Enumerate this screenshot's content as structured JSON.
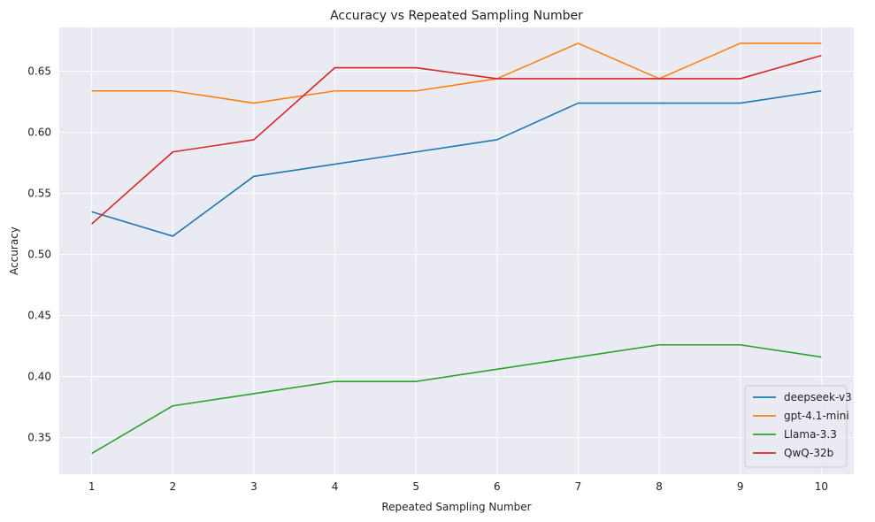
{
  "chart_data": {
    "type": "line",
    "title": "Accuracy vs Repeated Sampling Number",
    "xlabel": "Repeated Sampling Number",
    "ylabel": "Accuracy",
    "x": [
      1,
      2,
      3,
      4,
      5,
      6,
      7,
      8,
      9,
      10
    ],
    "xlim": [
      0.6,
      10.4
    ],
    "ylim": [
      0.32,
      0.686
    ],
    "xticks": [
      "1",
      "2",
      "3",
      "4",
      "5",
      "6",
      "7",
      "8",
      "9",
      "10"
    ],
    "yticks": [
      "0.35",
      "0.40",
      "0.45",
      "0.50",
      "0.55",
      "0.60",
      "0.65"
    ],
    "grid": true,
    "legend_position": "bottom-right",
    "series": [
      {
        "name": "deepseek-v3",
        "color": "#1f77b4",
        "values": [
          0.535,
          0.515,
          0.564,
          0.574,
          0.584,
          0.594,
          0.624,
          0.624,
          0.624,
          0.634
        ]
      },
      {
        "name": "gpt-4.1-mini",
        "color": "#ff7f0e",
        "values": [
          0.634,
          0.634,
          0.624,
          0.634,
          0.634,
          0.644,
          0.673,
          0.644,
          0.673,
          0.673
        ]
      },
      {
        "name": "Llama-3.3",
        "color": "#2ca02c",
        "values": [
          0.337,
          0.376,
          0.386,
          0.396,
          0.396,
          0.406,
          0.416,
          0.426,
          0.426,
          0.416
        ]
      },
      {
        "name": "QwQ-32b",
        "color": "#d62728",
        "values": [
          0.525,
          0.584,
          0.594,
          0.653,
          0.653,
          0.644,
          0.644,
          0.644,
          0.644,
          0.663
        ]
      }
    ]
  }
}
